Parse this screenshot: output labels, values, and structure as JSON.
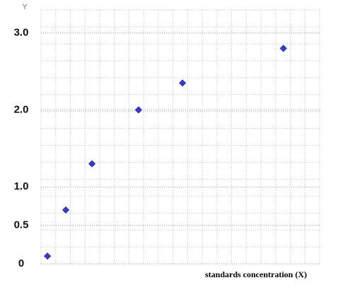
{
  "chart_data": {
    "type": "scatter",
    "y_label": "Y",
    "x_label": "standards concentration (X)",
    "series": [
      {
        "color": "#3a3ad0",
        "x": [
          2.3,
          8.9,
          18.3,
          35,
          50.8,
          87
        ],
        "values": [
          0.1,
          0.7,
          1.3,
          2.0,
          2.35,
          2.8
        ]
      }
    ],
    "xlim": [
      0,
      100
    ],
    "ylim": [
      0,
      3.3
    ],
    "yticks": [
      {
        "value": 0,
        "label": "0"
      },
      0.5,
      {
        "value": 1,
        "label": "1.0"
      },
      {
        "value": 2,
        "label": "2.0"
      },
      {
        "value": 3,
        "label": "3.0"
      }
    ],
    "grid": true
  }
}
